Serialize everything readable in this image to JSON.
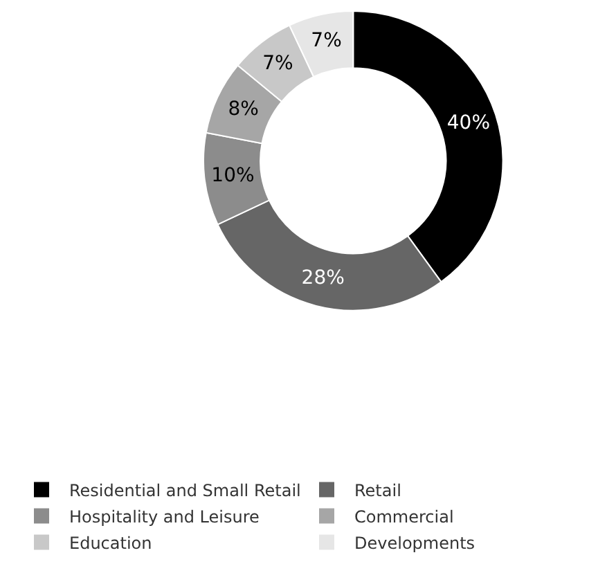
{
  "chart_data": {
    "type": "donut",
    "categories": [
      "Residential and Small Retail",
      "Retail",
      "Hospitality and Leisure",
      "Commercial",
      "Education",
      "Developments"
    ],
    "values": [
      40,
      28,
      10,
      8,
      7,
      7
    ],
    "colors": [
      "#000000",
      "#666666",
      "#8c8c8c",
      "#a6a6a6",
      "#c8c8c8",
      "#e6e6e6"
    ],
    "value_labels": [
      "40%",
      "28%",
      "10%",
      "8%",
      "7%",
      "7%"
    ],
    "legend": "bottom"
  }
}
